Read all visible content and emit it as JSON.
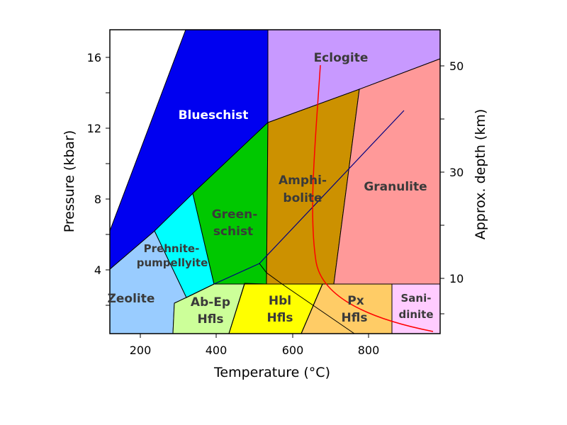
{
  "diagram": {
    "x_axis": {
      "title": "Temperature (°C)",
      "ticks": [
        {
          "label": "200",
          "value": 200
        },
        {
          "label": "400",
          "value": 400
        },
        {
          "label": "600",
          "value": 600
        },
        {
          "label": "800",
          "value": 800
        }
      ]
    },
    "y_axis_left": {
      "title": "Pressure (kbar)",
      "ticks": [
        {
          "label": "4",
          "value": 4
        },
        {
          "label": "8",
          "value": 8
        },
        {
          "label": "12",
          "value": 12
        },
        {
          "label": "16",
          "value": 16
        }
      ]
    },
    "y_axis_right": {
      "title": "Approx. depth (km)",
      "ticks": [
        {
          "label": "10",
          "value": 10
        },
        {
          "label": "30",
          "value": 30
        },
        {
          "label": "50",
          "value": 50
        }
      ]
    },
    "facies": {
      "eclogite": {
        "name": "Eclogite",
        "color": "#c899ff"
      },
      "blueschist": {
        "name": "Blueschist",
        "color": "#0000f0"
      },
      "amphibolite": {
        "line1": "Amphi-",
        "line2": "bolite",
        "color": "#cc9100"
      },
      "granulite": {
        "name": "Granulite",
        "color": "#ff9999"
      },
      "greenschist": {
        "line1": "Green-",
        "line2": "schist",
        "color": "#00c800"
      },
      "prehnite_pumpellyite": {
        "line1": "Prehnite-",
        "line2": "pumpellyite",
        "color": "#00ffff"
      },
      "zeolite": {
        "name": "Zeolite",
        "color": "#99ccff"
      },
      "ab_ep_hfls": {
        "line1": "Ab-Ep",
        "line2": "Hfls",
        "color": "#ccff99"
      },
      "hbl_hfls": {
        "line1": "Hbl",
        "line2": "Hfls",
        "color": "#ffff00"
      },
      "px_hfls": {
        "line1": "Px",
        "line2": "Hfls",
        "color": "#ffcc66"
      },
      "sanidinite": {
        "line1": "Sani-",
        "line2": "dinite",
        "color": "#ffccff"
      }
    },
    "red_curve_color": "#ff0000",
    "geotherm_line_color": "#000080"
  }
}
